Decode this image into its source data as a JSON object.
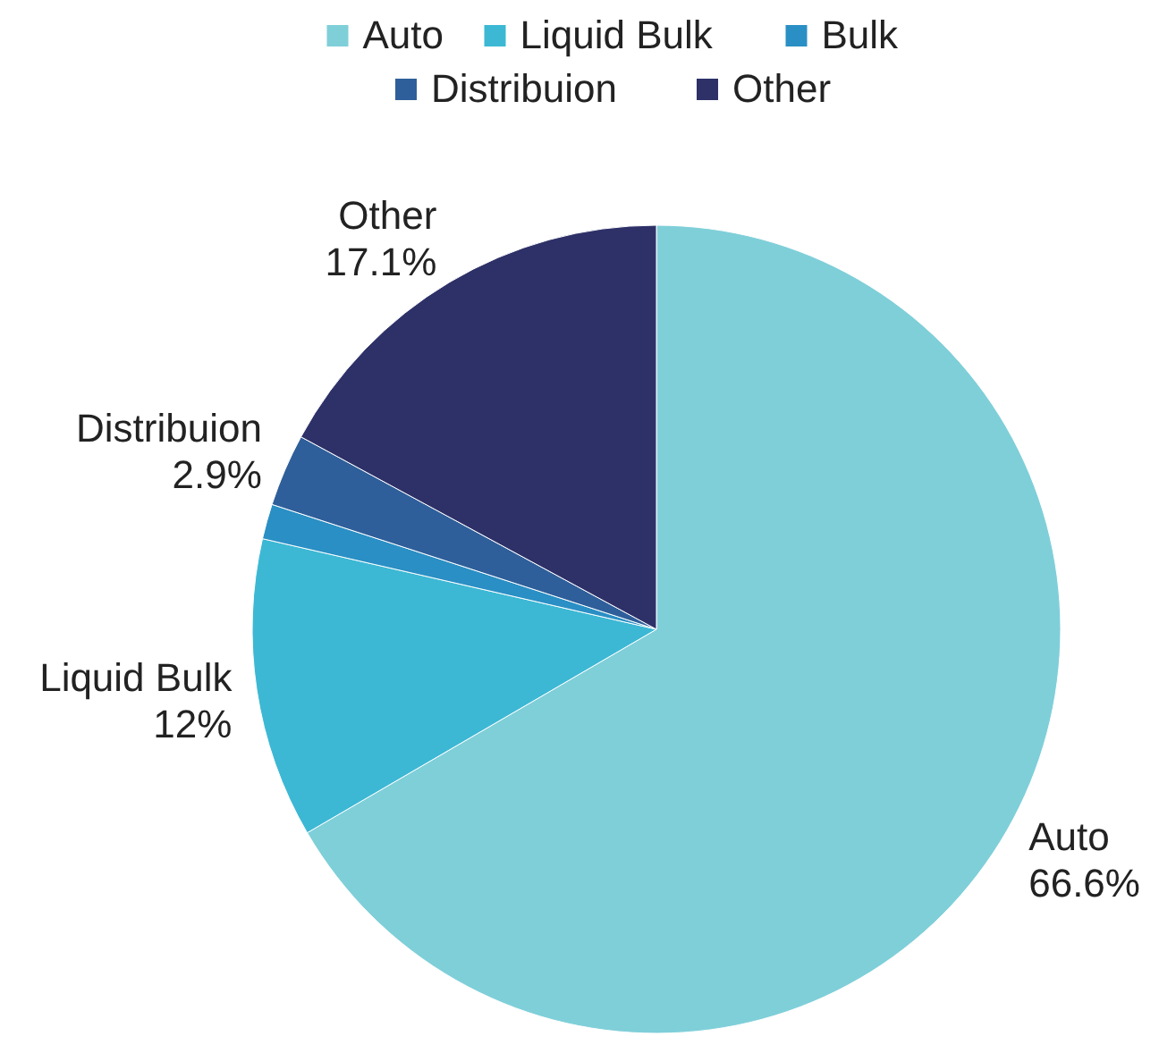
{
  "chart_data": {
    "type": "pie",
    "categories": [
      "Auto",
      "Liquid Bulk",
      "Bulk",
      "Distribuion",
      "Other"
    ],
    "values": [
      66.6,
      12,
      1.4,
      2.9,
      17.1
    ],
    "colors": [
      "#7fcfd9",
      "#3cb8d4",
      "#2a8fc4",
      "#2f5f9a",
      "#2e3168"
    ],
    "value_labels": [
      "66.6%",
      "12%",
      null,
      "2.9%",
      "17.1%"
    ],
    "legend": "top"
  }
}
